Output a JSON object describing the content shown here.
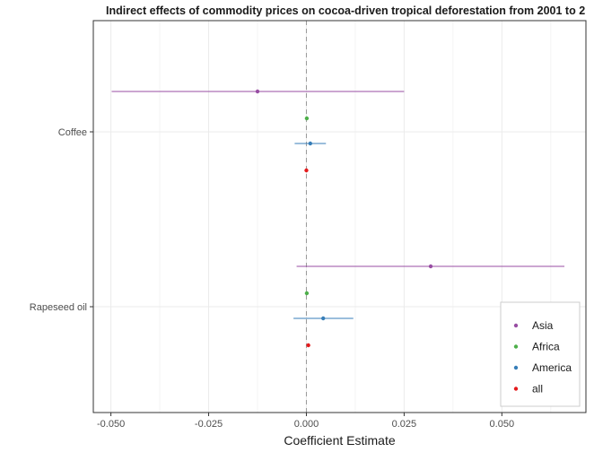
{
  "chart_data": {
    "type": "scatter",
    "subtype": "coefficient-plot",
    "title": "Indirect effects of commodity prices on cocoa-driven tropical deforestation from 2001 to 2",
    "xlabel": "Coefficient Estimate",
    "ylabel": "",
    "xlim": [
      -0.0545,
      0.0715
    ],
    "x_ticks": [
      -0.05,
      -0.025,
      0.0,
      0.025,
      0.05
    ],
    "x_tick_labels": [
      "-0.050",
      "-0.025",
      "0.000",
      "0.025",
      "0.050"
    ],
    "reference_line": 0,
    "grid": true,
    "legend_position": "bottom-right",
    "categories": [
      "Coffee",
      "Rapeseed oil"
    ],
    "series": [
      {
        "name": "Asia",
        "color": "#984ea3",
        "points": [
          {
            "category": "Coffee",
            "estimate": -0.0125,
            "ci_low": -0.0498,
            "ci_high": 0.025
          },
          {
            "category": "Rapeseed oil",
            "estimate": 0.0318,
            "ci_low": -0.0025,
            "ci_high": 0.066
          }
        ]
      },
      {
        "name": "Africa",
        "color": "#4daf4a",
        "points": [
          {
            "category": "Coffee",
            "estimate": 0.0001,
            "ci_low": 0.0001,
            "ci_high": 0.0001
          },
          {
            "category": "Rapeseed oil",
            "estimate": 0.0001,
            "ci_low": 0.0001,
            "ci_high": 0.0001
          }
        ]
      },
      {
        "name": "America",
        "color": "#377eb8",
        "points": [
          {
            "category": "Coffee",
            "estimate": 0.001,
            "ci_low": -0.003,
            "ci_high": 0.005
          },
          {
            "category": "Rapeseed oil",
            "estimate": 0.0043,
            "ci_low": -0.0033,
            "ci_high": 0.012
          }
        ]
      },
      {
        "name": "all",
        "color": "#e41a1c",
        "points": [
          {
            "category": "Coffee",
            "estimate": 0.0,
            "ci_low": 0.0,
            "ci_high": 0.0
          },
          {
            "category": "Rapeseed oil",
            "estimate": 0.0005,
            "ci_low": 0.0005,
            "ci_high": 0.0005
          }
        ]
      }
    ]
  }
}
